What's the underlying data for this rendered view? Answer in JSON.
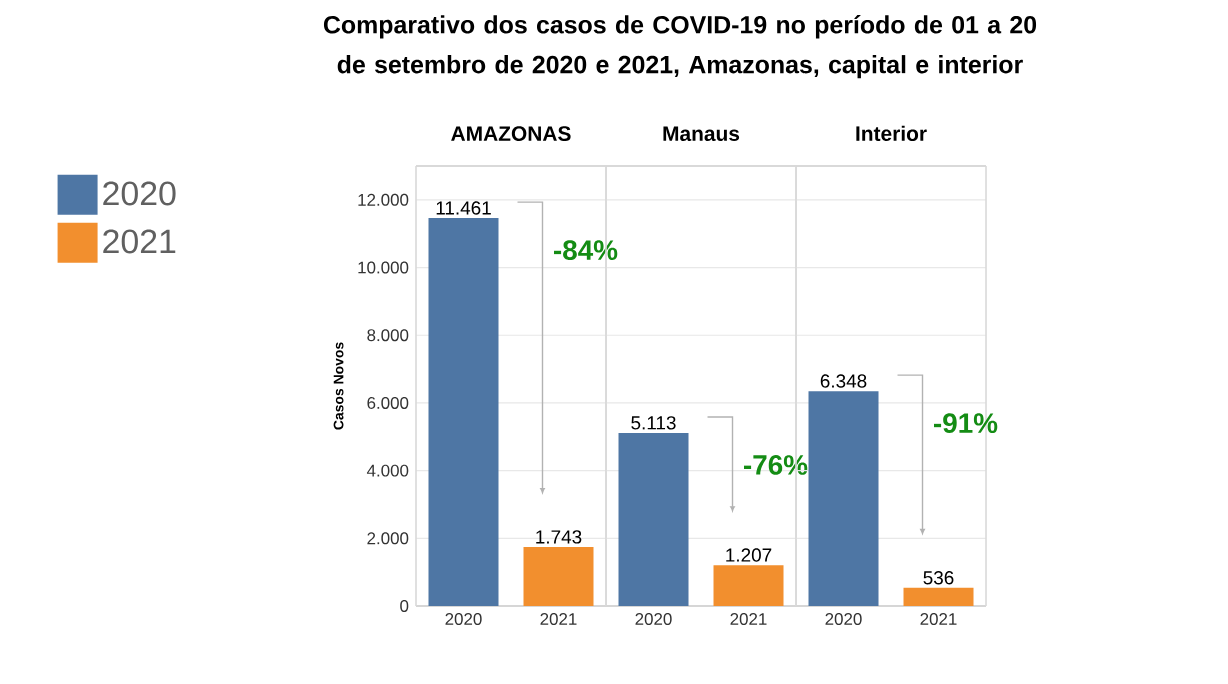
{
  "chart_data": [
    {
      "type": "bar",
      "title": "Comparativo dos casos de COVID-19 no período de 01 a 20 de setembro de 2020 e 2021, Amazonas, capital e interior",
      "subtitle": "AMAZONAS",
      "ylabel": "Casos Novos",
      "categories": [
        "2020",
        "2021"
      ],
      "series": [
        {
          "name": "2020",
          "color": "#4e76a4",
          "values": [
            11461,
            null
          ],
          "value_labels": [
            "11.461",
            null
          ]
        },
        {
          "name": "2021",
          "color": "#f28f2e",
          "values": [
            null,
            1743
          ],
          "value_labels": [
            null,
            "1.743"
          ]
        }
      ],
      "ylim": [
        0,
        13000
      ],
      "yticks": [
        0,
        {
          "value": 2000,
          "label": "2.000"
        },
        {
          "value": 4000,
          "label": "4.000"
        },
        {
          "value": 6000,
          "label": "6.000"
        },
        {
          "value": 8000,
          "label": "8.000"
        },
        {
          "value": 10000,
          "label": "10.000"
        },
        {
          "value": 12000,
          "label": "12.000"
        }
      ],
      "grid": "y",
      "legend": "left",
      "annotations": [
        "-84%"
      ]
    },
    {
      "type": "bar",
      "subtitle": "Manaus",
      "categories": [
        "2020",
        "2021"
      ],
      "series": [
        {
          "color": "#4e76a4",
          "values": [
            5113,
            null
          ],
          "value_labels": [
            "5.113",
            null
          ]
        },
        {
          "color": "#f28f2e",
          "values": [
            null,
            1207
          ],
          "value_labels": [
            null,
            "1.207"
          ]
        }
      ],
      "ylim": [
        0,
        13000
      ],
      "yticks": [
        0,
        2000,
        4000,
        6000,
        8000,
        10000,
        12000
      ],
      "grid": "y",
      "tick_labels": "x",
      "annotations": [
        "-76%"
      ]
    },
    {
      "type": "bar",
      "subtitle": "Interior",
      "categories": [
        "2020",
        "2021"
      ],
      "series": [
        {
          "color": "#4e76a4",
          "values": [
            6348,
            null
          ],
          "value_labels": [
            "6.348",
            null
          ]
        },
        {
          "color": "#f28f2e",
          "values": [
            null,
            536
          ],
          "value_labels": [
            null,
            "536"
          ]
        }
      ],
      "ylim": [
        0,
        13000
      ],
      "yticks": [
        0,
        2000,
        4000,
        6000,
        8000,
        10000,
        12000
      ],
      "grid": "y",
      "tick_labels": "x",
      "annotations": [
        "-91%"
      ]
    }
  ]
}
